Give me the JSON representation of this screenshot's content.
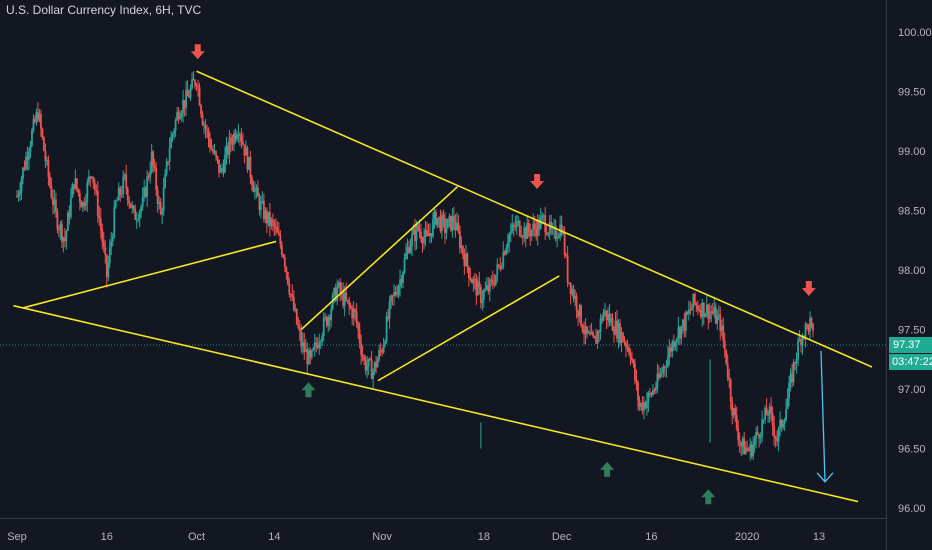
{
  "header": {
    "title": "U.S. Dollar Currency Index, 6H, TVC"
  },
  "last_price": {
    "value": "97.37",
    "numeric": 97.37,
    "countdown": "03:47:22"
  },
  "colors": {
    "background": "#131722",
    "up": "#26a69a",
    "down": "#ef5350",
    "trendline": "#f5e625",
    "up_arrow": "#2e7d5b",
    "down_arrow": "#ef5350",
    "projection": "#4fc3f7",
    "badge": "#22ab94"
  },
  "chart_data": {
    "type": "candlestick",
    "title": "U.S. Dollar Currency Index, 6H, TVC",
    "ylim": [
      95.92,
      100.14
    ],
    "y_ticks": [
      "100.00",
      "99.50",
      "99.00",
      "98.50",
      "98.00",
      "97.50",
      "97.00",
      "96.50",
      "96.00"
    ],
    "x_range_days": [
      -0.6,
      134.0
    ],
    "x_ticks": [
      {
        "label": "Sep",
        "day": 0
      },
      {
        "label": "16",
        "day": 15
      },
      {
        "label": "Oct",
        "day": 30
      },
      {
        "label": "14",
        "day": 43
      },
      {
        "label": "Nov",
        "day": 61
      },
      {
        "label": "18",
        "day": 78
      },
      {
        "label": "Dec",
        "day": 91
      },
      {
        "label": "16",
        "day": 106
      },
      {
        "label": "2020",
        "day": 122
      },
      {
        "label": "13",
        "day": 134
      }
    ],
    "price_path": [
      [
        0,
        98.62
      ],
      [
        2,
        99.05
      ],
      [
        3.5,
        99.33
      ],
      [
        5,
        98.85
      ],
      [
        6.5,
        98.45
      ],
      [
        8,
        98.25
      ],
      [
        9.5,
        98.75
      ],
      [
        11,
        98.55
      ],
      [
        12.5,
        98.85
      ],
      [
        14,
        98.35
      ],
      [
        15,
        97.95
      ],
      [
        16.5,
        98.55
      ],
      [
        18,
        98.75
      ],
      [
        19.5,
        98.45
      ],
      [
        21,
        98.55
      ],
      [
        22.5,
        98.95
      ],
      [
        24,
        98.45
      ],
      [
        25.5,
        99.05
      ],
      [
        27,
        99.35
      ],
      [
        28.5,
        99.45
      ],
      [
        30,
        99.62
      ],
      [
        31,
        99.28
      ],
      [
        32.5,
        99.02
      ],
      [
        34,
        98.82
      ],
      [
        35.5,
        99.05
      ],
      [
        37,
        99.22
      ],
      [
        38.5,
        98.92
      ],
      [
        40,
        98.62
      ],
      [
        41.5,
        98.45
      ],
      [
        43,
        98.35
      ],
      [
        44.5,
        98.15
      ],
      [
        46,
        97.72
      ],
      [
        47.5,
        97.38
      ],
      [
        49,
        97.22
      ],
      [
        50.5,
        97.45
      ],
      [
        52,
        97.62
      ],
      [
        53.5,
        97.85
      ],
      [
        55,
        97.72
      ],
      [
        56.5,
        97.62
      ],
      [
        58,
        97.22
      ],
      [
        59.5,
        97.15
      ],
      [
        61,
        97.35
      ],
      [
        62.5,
        97.72
      ],
      [
        64,
        97.92
      ],
      [
        65.5,
        98.22
      ],
      [
        67,
        98.35
      ],
      [
        68.5,
        98.25
      ],
      [
        70,
        98.45
      ],
      [
        71.5,
        98.35
      ],
      [
        73,
        98.42
      ],
      [
        74.5,
        98.15
      ],
      [
        76,
        97.92
      ],
      [
        77.5,
        97.78
      ],
      [
        79,
        97.85
      ],
      [
        80.5,
        98.02
      ],
      [
        82,
        98.28
      ],
      [
        83.5,
        98.38
      ],
      [
        85,
        98.32
      ],
      [
        86.5,
        98.35
      ],
      [
        88,
        98.42
      ],
      [
        89.5,
        98.28
      ],
      [
        91,
        98.38
      ],
      [
        92,
        97.95
      ],
      [
        93.5,
        97.72
      ],
      [
        95,
        97.45
      ],
      [
        96.5,
        97.38
      ],
      [
        98,
        97.65
      ],
      [
        99.5,
        97.55
      ],
      [
        101,
        97.45
      ],
      [
        102.5,
        97.32
      ],
      [
        104,
        96.85
      ],
      [
        105.5,
        96.92
      ],
      [
        107,
        97.05
      ],
      [
        108.5,
        97.25
      ],
      [
        110,
        97.45
      ],
      [
        111.5,
        97.55
      ],
      [
        113,
        97.72
      ],
      [
        114.5,
        97.68
      ],
      [
        116,
        97.65
      ],
      [
        117.5,
        97.55
      ],
      [
        118.5,
        97.25
      ],
      [
        119.5,
        96.85
      ],
      [
        121,
        96.52
      ],
      [
        122.5,
        96.48
      ],
      [
        124,
        96.65
      ],
      [
        125.5,
        96.82
      ],
      [
        127,
        96.58
      ],
      [
        128.5,
        96.85
      ],
      [
        130,
        97.25
      ],
      [
        131,
        97.45
      ],
      [
        132.5,
        97.55
      ],
      [
        133.2,
        97.37
      ]
    ],
    "trendlines": [
      {
        "name": "upper-resistance",
        "from": [
          30,
          99.67
        ],
        "to": [
          134,
          97.38
        ]
      },
      {
        "name": "lower-support",
        "from": [
          -0.6,
          97.7
        ],
        "to": [
          134,
          96.13
        ]
      },
      {
        "name": "left-rising-line",
        "from": [
          0.9,
          97.68
        ],
        "to": [
          43.3,
          98.24
        ]
      },
      {
        "name": "channel-upper",
        "from": [
          47.5,
          97.5
        ],
        "to": [
          73.6,
          98.7
        ]
      },
      {
        "name": "channel-lower",
        "from": [
          60.3,
          97.07
        ],
        "to": [
          90.6,
          97.95
        ]
      }
    ],
    "markers": [
      {
        "type": "down-arrow",
        "day": 30.2,
        "price": 99.83
      },
      {
        "type": "down-arrow",
        "day": 86.9,
        "price": 98.74
      },
      {
        "type": "down-arrow",
        "day": 132.3,
        "price": 97.84
      },
      {
        "type": "up-arrow",
        "day": 48.7,
        "price": 96.99
      },
      {
        "type": "up-arrow",
        "day": 98.6,
        "price": 96.32
      },
      {
        "type": "up-arrow",
        "day": 115.5,
        "price": 96.09
      }
    ],
    "projection": {
      "from": [
        134,
        97.32
      ],
      "to": [
        129.3,
        96.22
      ]
    }
  }
}
